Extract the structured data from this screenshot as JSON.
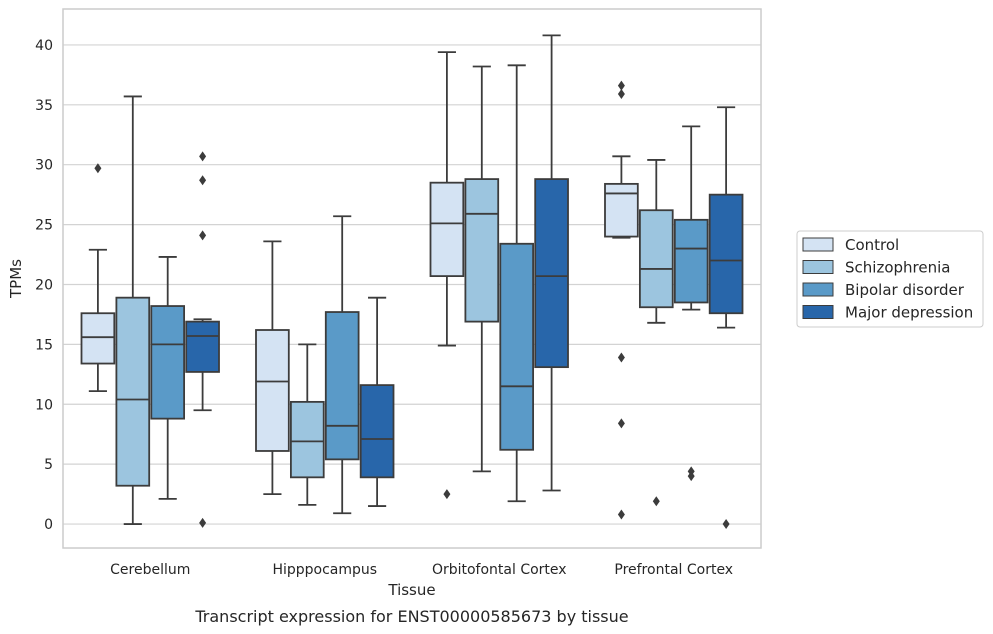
{
  "chart_data": {
    "type": "box",
    "caption": "Transcript expression for ENST00000585673 by tissue",
    "xlabel": "Tissue",
    "ylabel": "TPMs",
    "ylim": [
      -2,
      43
    ],
    "yticks": [
      0,
      5,
      10,
      15,
      20,
      25,
      30,
      35,
      40
    ],
    "grid": true,
    "legend_position": "right",
    "categories": [
      "Cerebellum",
      "Hipppocampus",
      "Orbitofontal Cortex",
      "Prefrontal Cortex"
    ],
    "series": [
      {
        "name": "Control",
        "color": "#d4e3f3",
        "boxes": [
          {
            "whislo": 11.1,
            "q1": 13.4,
            "med": 15.6,
            "q3": 17.6,
            "whishi": 22.9,
            "fliers": [
              29.7
            ]
          },
          {
            "whislo": 2.5,
            "q1": 6.1,
            "med": 11.9,
            "q3": 16.2,
            "whishi": 23.6,
            "fliers": []
          },
          {
            "whislo": 14.9,
            "q1": 20.7,
            "med": 25.1,
            "q3": 28.5,
            "whishi": 39.4,
            "fliers": [
              2.5
            ]
          },
          {
            "whislo": 23.9,
            "q1": 24.0,
            "med": 27.6,
            "q3": 28.4,
            "whishi": 30.7,
            "fliers": [
              36.6,
              35.9,
              13.9,
              8.4,
              0.8
            ]
          }
        ]
      },
      {
        "name": "Schizophrenia",
        "color": "#9cc5df",
        "boxes": [
          {
            "whislo": 0.0,
            "q1": 3.2,
            "med": 10.4,
            "q3": 18.9,
            "whishi": 35.7,
            "fliers": []
          },
          {
            "whislo": 1.6,
            "q1": 3.9,
            "med": 6.9,
            "q3": 10.2,
            "whishi": 15.0,
            "fliers": []
          },
          {
            "whislo": 4.4,
            "q1": 16.9,
            "med": 25.9,
            "q3": 28.8,
            "whishi": 38.2,
            "fliers": []
          },
          {
            "whislo": 16.8,
            "q1": 18.1,
            "med": 21.3,
            "q3": 26.2,
            "whishi": 30.4,
            "fliers": [
              1.9
            ]
          }
        ]
      },
      {
        "name": "Bipolar disorder",
        "color": "#5a9ac8",
        "boxes": [
          {
            "whislo": 2.1,
            "q1": 8.8,
            "med": 15.0,
            "q3": 18.2,
            "whishi": 22.3,
            "fliers": []
          },
          {
            "whislo": 0.9,
            "q1": 5.4,
            "med": 8.2,
            "q3": 17.7,
            "whishi": 25.7,
            "fliers": []
          },
          {
            "whislo": 1.9,
            "q1": 6.2,
            "med": 11.5,
            "q3": 23.4,
            "whishi": 38.3,
            "fliers": []
          },
          {
            "whislo": 17.9,
            "q1": 18.5,
            "med": 23.0,
            "q3": 25.4,
            "whishi": 33.2,
            "fliers": [
              4.4,
              4.0
            ]
          }
        ]
      },
      {
        "name": "Major depression",
        "color": "#2866aa",
        "boxes": [
          {
            "whislo": 9.5,
            "q1": 12.7,
            "med": 15.7,
            "q3": 16.9,
            "whishi": 17.1,
            "fliers": [
              30.7,
              28.7,
              24.1,
              0.1
            ]
          },
          {
            "whislo": 1.5,
            "q1": 3.9,
            "med": 7.1,
            "q3": 11.6,
            "whishi": 18.9,
            "fliers": []
          },
          {
            "whislo": 2.8,
            "q1": 13.1,
            "med": 20.7,
            "q3": 28.8,
            "whishi": 40.8,
            "fliers": []
          },
          {
            "whislo": 16.4,
            "q1": 17.6,
            "med": 22.0,
            "q3": 27.5,
            "whishi": 34.8,
            "fliers": [
              0.0
            ]
          }
        ]
      }
    ]
  }
}
